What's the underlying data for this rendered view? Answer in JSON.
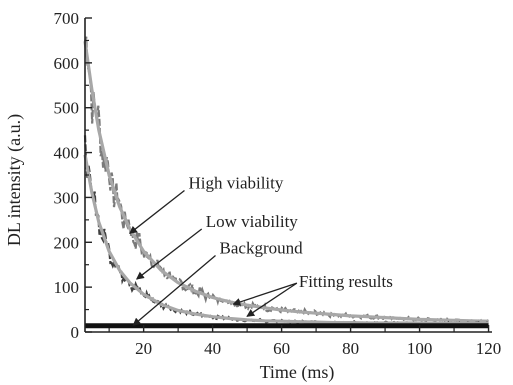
{
  "chart_data": {
    "type": "line",
    "title": "",
    "xlabel": "Time (ms)",
    "ylabel": "DL intensity (a.u.)",
    "xlim": [
      3,
      121
    ],
    "ylim": [
      0,
      700
    ],
    "x_ticks": [
      20,
      40,
      60,
      80,
      100,
      120
    ],
    "y_ticks": [
      0,
      100,
      200,
      300,
      400,
      500,
      600,
      700
    ],
    "grid": false,
    "legend": "none",
    "series": [
      {
        "x": [
          3,
          5,
          7,
          10,
          13,
          16,
          20,
          25,
          30,
          35,
          40,
          45,
          50,
          55,
          60,
          65,
          70,
          75,
          80,
          85,
          90,
          95,
          100,
          105,
          110,
          115,
          120
        ],
        "values": [
          648,
          540,
          450,
          350,
          280,
          230,
          180,
          138,
          110,
          91,
          77,
          67,
          60,
          54,
          49,
          45,
          42,
          39,
          36,
          34,
          32,
          30,
          28,
          27,
          26,
          25,
          24
        ],
        "color": "#7a7a7a"
      },
      {
        "x": [
          3,
          5,
          7,
          10,
          13,
          16,
          20,
          25,
          30,
          35,
          40,
          45,
          50,
          55,
          60,
          65,
          70,
          75,
          80,
          85,
          90,
          95,
          100,
          105,
          110,
          115,
          120
        ],
        "values": [
          395,
          310,
          245,
          180,
          138,
          110,
          84,
          62,
          48,
          40,
          34,
          30,
          27,
          25,
          24,
          23,
          22,
          21,
          21,
          20,
          20,
          20,
          20,
          19,
          19,
          19,
          19
        ],
        "color": "#404040"
      },
      {
        "x": [
          3,
          120
        ],
        "values": [
          14,
          14
        ],
        "color": "#111111"
      }
    ],
    "annotations": [
      {
        "text": "High viability",
        "x": 33,
        "y": 320,
        "arrow_to": [
          16,
          220
        ]
      },
      {
        "text": "Low viability",
        "x": 38,
        "y": 234,
        "arrow_to": [
          18,
          118
        ]
      },
      {
        "text": "Background",
        "x": 42,
        "y": 175,
        "arrow_to": [
          17,
          15
        ]
      },
      {
        "text": "Fitting results",
        "x": 65,
        "y": 100,
        "arrow_to": [
          [
            46,
            62
          ],
          [
            50,
            35
          ]
        ]
      }
    ],
    "colors": {
      "axis": "#222222",
      "fit": "#a8a8a8"
    }
  }
}
